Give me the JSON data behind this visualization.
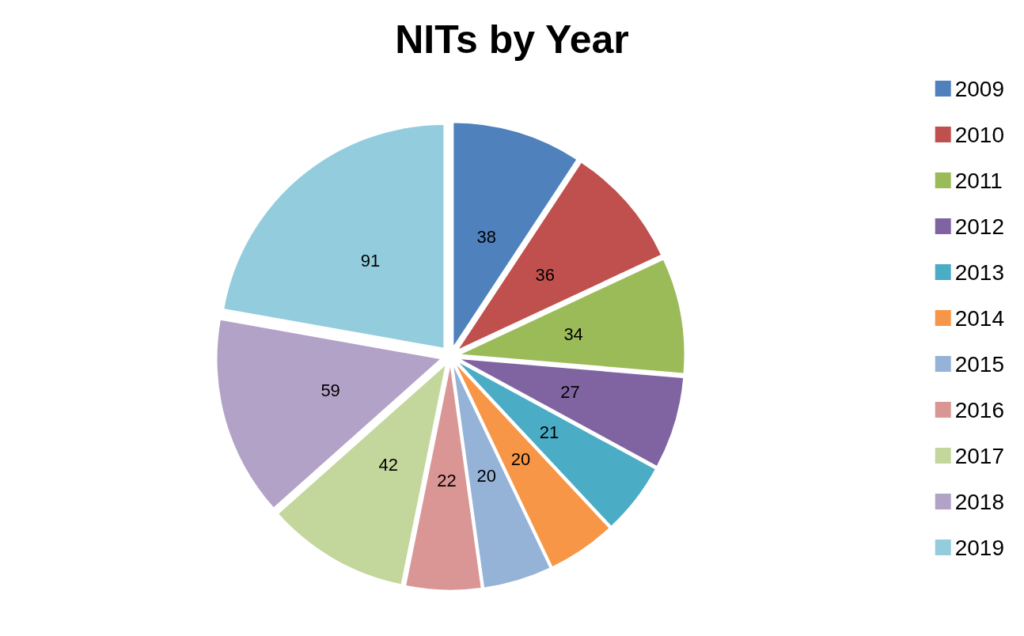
{
  "chart_data": {
    "type": "pie",
    "title": "NITs by Year",
    "categories": [
      "2009",
      "2010",
      "2011",
      "2012",
      "2013",
      "2014",
      "2015",
      "2016",
      "2017",
      "2018",
      "2019"
    ],
    "values": [
      38,
      36,
      34,
      27,
      21,
      20,
      20,
      22,
      42,
      59,
      91
    ],
    "colors": [
      "#4f81bd",
      "#c0504d",
      "#9bbb59",
      "#8064a2",
      "#4bacc6",
      "#f79646",
      "#95b3d7",
      "#d99694",
      "#c3d69b",
      "#b3a2c7",
      "#93cddd"
    ],
    "data_labels": true,
    "legend": "right"
  }
}
